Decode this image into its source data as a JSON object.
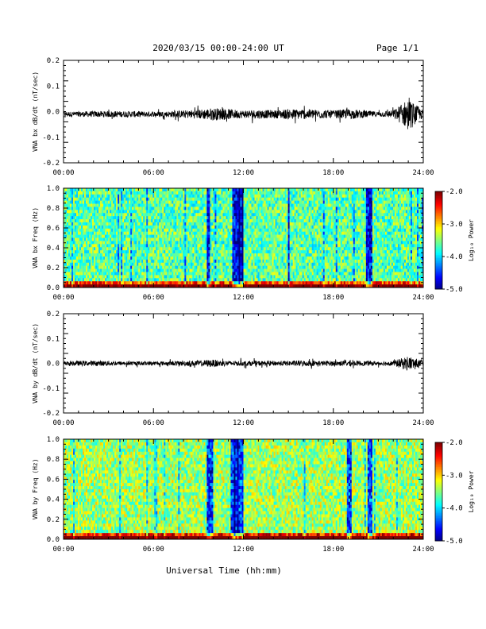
{
  "header": {
    "title": "2020/03/15  00:00-24:00 UT",
    "page": "Page 1/1"
  },
  "footer": {
    "xlabel": "Universal Time (hh:mm)"
  },
  "chart_data": [
    {
      "type": "line",
      "ylabel": "VNA bx dB/dt (nT/sec)",
      "xlim": [
        0,
        24
      ],
      "ylim": [
        -0.2,
        0.2
      ],
      "x_ticks": [
        "00:00",
        "06:00",
        "12:00",
        "18:00",
        "24:00"
      ],
      "y_ticks": [
        "0.2",
        "0.1",
        "0.0",
        "-0.1",
        "-0.2"
      ],
      "y_tick_values": [
        0.2,
        0.1,
        0.0,
        -0.1,
        -0.2
      ],
      "series": [
        {
          "x": [
            0,
            1,
            2,
            3,
            4,
            5,
            6,
            7,
            8,
            9,
            10,
            11,
            12,
            13,
            14,
            15,
            16,
            17,
            18,
            19,
            20,
            21,
            22,
            23,
            24
          ],
          "amplitude": [
            0.01,
            0.01,
            0.012,
            0.012,
            0.012,
            0.012,
            0.01,
            0.012,
            0.015,
            0.018,
            0.025,
            0.02,
            0.015,
            0.018,
            0.015,
            0.02,
            0.02,
            0.018,
            0.015,
            0.02,
            0.015,
            0.01,
            0.015,
            0.06,
            0.015
          ]
        }
      ],
      "baseline": -0.01
    },
    {
      "type": "heatmap",
      "ylabel": "VNA bx Freq (Hz)",
      "xlim": [
        0,
        24
      ],
      "ylim": [
        0.0,
        1.0
      ],
      "x_ticks": [
        "00:00",
        "06:00",
        "12:00",
        "18:00",
        "24:00"
      ],
      "y_ticks": [
        "1.0",
        "0.8",
        "0.6",
        "0.4",
        "0.2",
        "0.0"
      ],
      "y_tick_values": [
        1.0,
        0.8,
        0.6,
        0.4,
        0.2,
        0.0
      ],
      "colorbar": {
        "label": "Log₁₀ Power",
        "min": -5.0,
        "max": -2.0,
        "ticks": [
          "-2.0",
          "-3.0",
          "-4.0",
          "-5.0"
        ]
      },
      "quiet_bands_hours": [
        [
          9.6,
          9.8
        ],
        [
          11.3,
          12.0
        ],
        [
          15.0,
          15.1
        ],
        [
          20.2,
          20.6
        ]
      ],
      "typical_log_power": -3.6
    },
    {
      "type": "line",
      "ylabel": "VNA by dB/dt (nT/sec)",
      "xlim": [
        0,
        24
      ],
      "ylim": [
        -0.2,
        0.2
      ],
      "x_ticks": [
        "00:00",
        "06:00",
        "12:00",
        "18:00",
        "24:00"
      ],
      "y_ticks": [
        "0.2",
        "0.1",
        "0.0",
        "-0.1",
        "-0.2"
      ],
      "y_tick_values": [
        0.2,
        0.1,
        0.0,
        -0.1,
        -0.2
      ],
      "series": [
        {
          "x": [
            0,
            1,
            2,
            3,
            4,
            5,
            6,
            7,
            8,
            9,
            10,
            11,
            12,
            13,
            14,
            15,
            16,
            17,
            18,
            19,
            20,
            21,
            22,
            23,
            24
          ],
          "amplitude": [
            0.008,
            0.01,
            0.01,
            0.01,
            0.008,
            0.008,
            0.008,
            0.008,
            0.01,
            0.012,
            0.015,
            0.01,
            0.01,
            0.01,
            0.01,
            0.01,
            0.012,
            0.01,
            0.01,
            0.01,
            0.01,
            0.008,
            0.01,
            0.03,
            0.01
          ]
        }
      ],
      "baseline": 0.0
    },
    {
      "type": "heatmap",
      "ylabel": "VNA by Freq (Hz)",
      "xlim": [
        0,
        24
      ],
      "ylim": [
        0.0,
        1.0
      ],
      "x_ticks": [
        "00:00",
        "06:00",
        "12:00",
        "18:00",
        "24:00"
      ],
      "y_ticks": [
        "1.0",
        "0.8",
        "0.6",
        "0.4",
        "0.2",
        "0.0"
      ],
      "y_tick_values": [
        1.0,
        0.8,
        0.6,
        0.4,
        0.2,
        0.0
      ],
      "colorbar": {
        "label": "Log₁₀ Power",
        "min": -5.0,
        "max": -2.0,
        "ticks": [
          "-2.0",
          "-3.0",
          "-4.0",
          "-5.0"
        ]
      },
      "quiet_bands_hours": [
        [
          9.6,
          10.0
        ],
        [
          11.2,
          12.0
        ],
        [
          18.9,
          19.2
        ],
        [
          20.3,
          20.6
        ]
      ],
      "typical_log_power": -3.4
    }
  ]
}
